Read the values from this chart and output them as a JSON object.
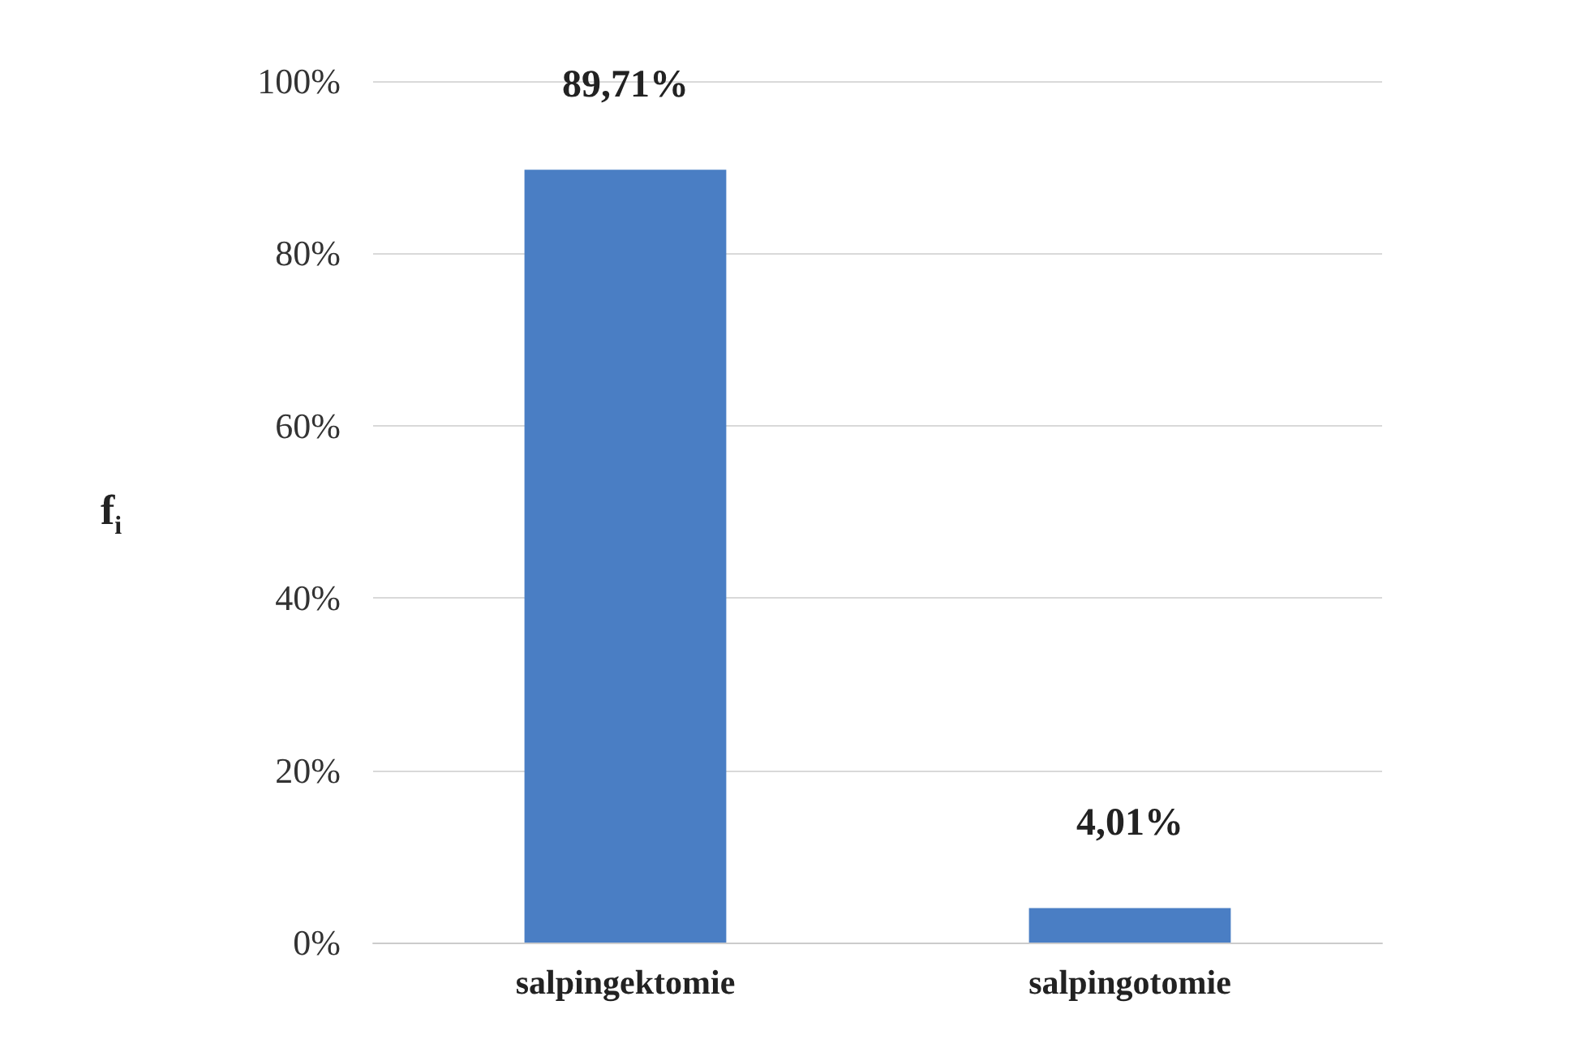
{
  "chart_data": {
    "type": "bar",
    "ylabel": "f$_{i}$",
    "categories": [
      "salpingektomie",
      "salpingotomie"
    ],
    "values": [
      89.71,
      4.01
    ],
    "value_labels": [
      "89,71%",
      "4,01%"
    ],
    "color": "#4a7ec4",
    "ylim": [
      0,
      100
    ],
    "yticks": [
      {
        "value": 0,
        "label": "0%"
      },
      {
        "value": 20,
        "label": "20%"
      },
      {
        "value": 40,
        "label": "40%"
      },
      {
        "value": 60,
        "label": "60%"
      },
      {
        "value": 80,
        "label": "80%"
      },
      {
        "value": 100,
        "label": "100%"
      }
    ],
    "grid": "y"
  }
}
